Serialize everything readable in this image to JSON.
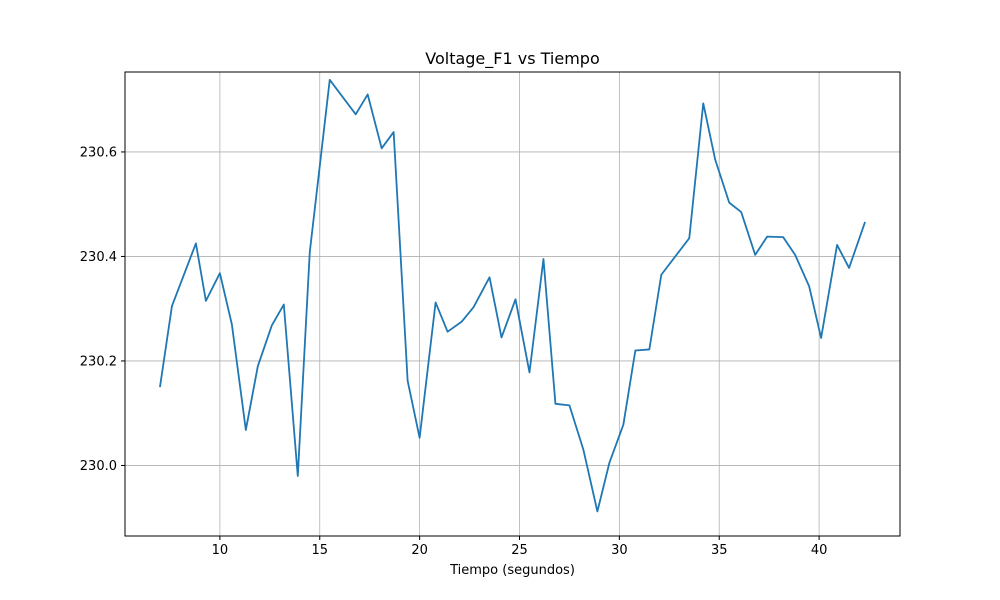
{
  "chart_data": {
    "type": "line",
    "title": "Voltage_F1 vs Tiempo",
    "xlabel": "Tiempo (segundos)",
    "ylabel": "",
    "xlim": [
      5.25,
      44.05
    ],
    "ylim": [
      229.865,
      230.753
    ],
    "grid": true,
    "legend": "none",
    "x_ticks": [
      {
        "value": 10,
        "label": "10"
      },
      {
        "value": 15,
        "label": "15"
      },
      {
        "value": 20,
        "label": "20"
      },
      {
        "value": 25,
        "label": "25"
      },
      {
        "value": 30,
        "label": "30"
      },
      {
        "value": 35,
        "label": "35"
      },
      {
        "value": 40,
        "label": "40"
      }
    ],
    "y_ticks": [
      {
        "value": 230.0,
        "label": "230.0"
      },
      {
        "value": 230.2,
        "label": "230.2"
      },
      {
        "value": 230.4,
        "label": "230.4"
      },
      {
        "value": 230.6,
        "label": "230.6"
      }
    ],
    "series": [
      {
        "name": "Voltage_F1",
        "color": "#1f77b4",
        "x": [
          7.0,
          7.6,
          8.8,
          9.3,
          10.0,
          10.6,
          11.3,
          11.9,
          12.6,
          13.2,
          13.9,
          14.5,
          15.5,
          16.8,
          17.4,
          18.1,
          18.7,
          19.4,
          20.0,
          20.8,
          21.4,
          22.1,
          22.7,
          23.5,
          24.1,
          24.8,
          25.5,
          26.2,
          26.8,
          27.5,
          28.2,
          28.9,
          29.5,
          30.2,
          30.8,
          31.5,
          32.1,
          33.5,
          34.2,
          34.8,
          35.5,
          36.1,
          36.8,
          37.4,
          38.2,
          38.8,
          39.5,
          40.1,
          40.9,
          41.5,
          42.3
        ],
        "values": [
          230.15,
          230.305,
          230.425,
          230.315,
          230.368,
          230.27,
          230.068,
          230.19,
          230.268,
          230.308,
          229.98,
          230.408,
          230.738,
          230.672,
          230.71,
          230.607,
          230.638,
          230.162,
          230.053,
          230.312,
          230.256,
          230.275,
          230.303,
          230.36,
          230.245,
          230.318,
          230.178,
          230.395,
          230.118,
          230.115,
          230.03,
          229.912,
          230.005,
          230.078,
          230.22,
          230.222,
          230.365,
          230.435,
          230.693,
          230.585,
          230.503,
          230.485,
          230.403,
          230.438,
          230.437,
          230.403,
          230.343,
          230.244,
          230.422,
          230.378,
          230.466
        ]
      }
    ]
  }
}
